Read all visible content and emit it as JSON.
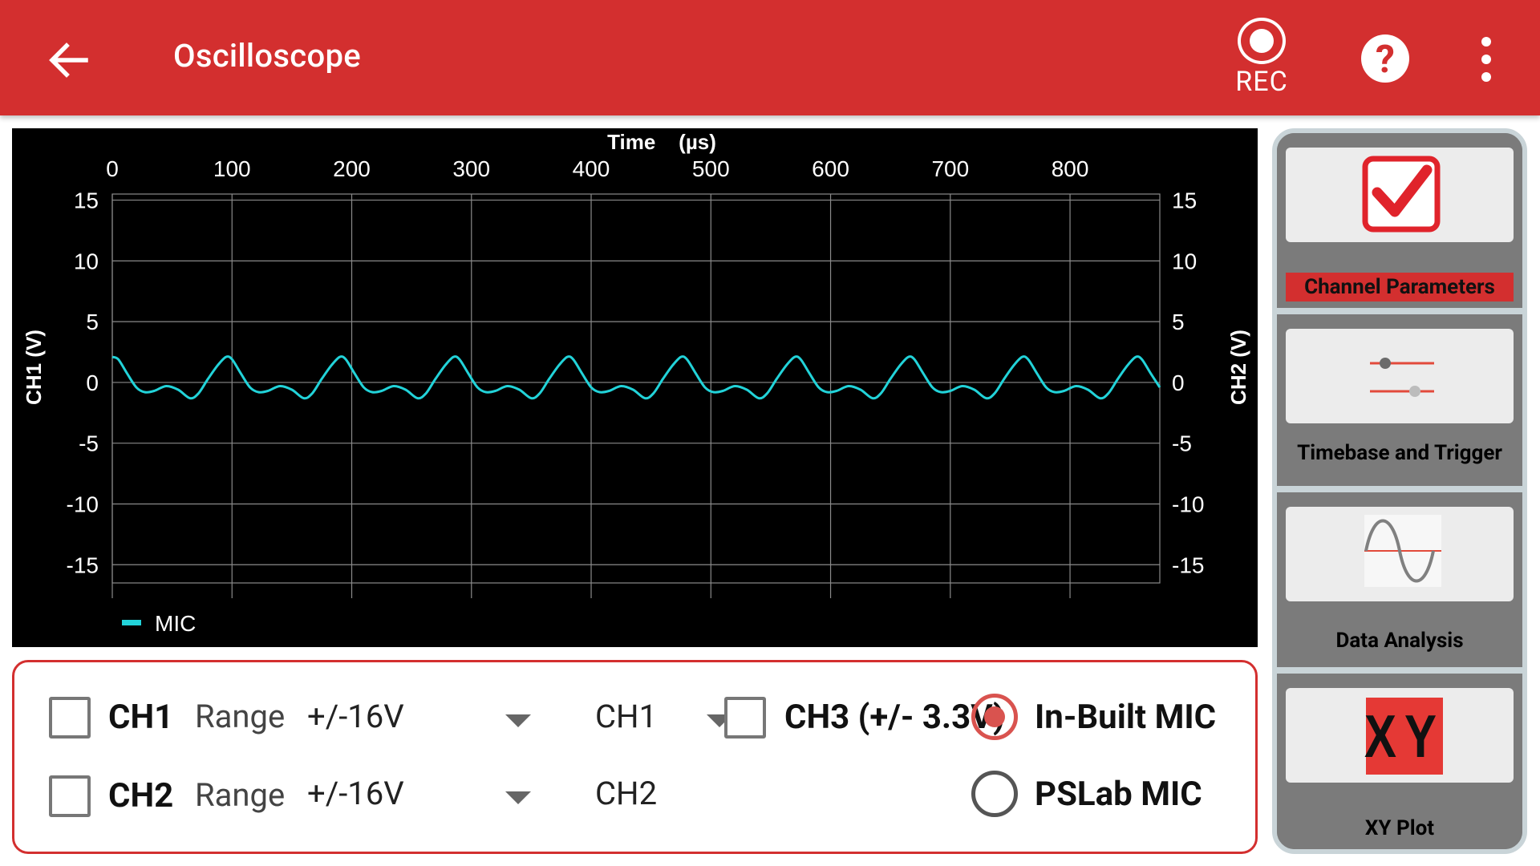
{
  "appbar": {
    "title": "Oscilloscope",
    "rec_label": "REC",
    "help_label": "?",
    "icons": {
      "back": "arrow-left-icon",
      "rec": "record-icon",
      "help": "help-circle-icon",
      "more": "more-vertical-icon"
    }
  },
  "chart_data": {
    "type": "line",
    "title": "",
    "xlabel": "Time    (µs)",
    "ylabel_left": "CH1 (V)",
    "ylabel_right": "CH2 (V)",
    "xlim": [
      0,
      875
    ],
    "ylim": [
      -16.5,
      15.5
    ],
    "x_ticks": [
      0,
      100,
      200,
      300,
      400,
      500,
      600,
      700,
      800
    ],
    "y_ticks": [
      15,
      10,
      5,
      0,
      -5,
      -10,
      -15
    ],
    "x_tick_labels": [
      "0",
      "100",
      "200",
      "300",
      "400",
      "500",
      "600",
      "700",
      "800"
    ],
    "y_tick_labels": [
      "15",
      "10",
      "5",
      "0",
      "-5",
      "-10",
      "-15"
    ],
    "grid": true,
    "legend": "bottom-left",
    "series": [
      {
        "name": "MIC",
        "color": "#22d3d9",
        "period_us": 95,
        "points": [
          [
            0,
            2.1
          ],
          [
            5,
            1.9
          ],
          [
            12,
            0.8
          ],
          [
            20,
            -0.4
          ],
          [
            27,
            -0.8
          ],
          [
            35,
            -0.7
          ],
          [
            45,
            -0.3
          ],
          [
            55,
            -0.6
          ],
          [
            65,
            -1.3
          ],
          [
            72,
            -0.9
          ],
          [
            80,
            0.3
          ],
          [
            88,
            1.4
          ],
          [
            95,
            2.1
          ],
          [
            100,
            1.9
          ],
          [
            107,
            0.8
          ],
          [
            115,
            -0.4
          ],
          [
            122,
            -0.8
          ],
          [
            130,
            -0.7
          ],
          [
            140,
            -0.3
          ],
          [
            150,
            -0.6
          ],
          [
            160,
            -1.3
          ],
          [
            167,
            -0.9
          ],
          [
            175,
            0.3
          ],
          [
            183,
            1.4
          ],
          [
            190,
            2.1
          ],
          [
            195,
            1.9
          ],
          [
            202,
            0.8
          ],
          [
            210,
            -0.4
          ],
          [
            217,
            -0.8
          ],
          [
            225,
            -0.7
          ],
          [
            235,
            -0.3
          ],
          [
            245,
            -0.6
          ],
          [
            255,
            -1.3
          ],
          [
            262,
            -0.9
          ],
          [
            270,
            0.3
          ],
          [
            278,
            1.4
          ],
          [
            285,
            2.1
          ],
          [
            290,
            1.9
          ],
          [
            297,
            0.8
          ],
          [
            305,
            -0.4
          ],
          [
            312,
            -0.8
          ],
          [
            320,
            -0.7
          ],
          [
            330,
            -0.3
          ],
          [
            340,
            -0.6
          ],
          [
            350,
            -1.3
          ],
          [
            357,
            -0.9
          ],
          [
            365,
            0.3
          ],
          [
            373,
            1.4
          ],
          [
            380,
            2.1
          ],
          [
            385,
            1.9
          ],
          [
            392,
            0.8
          ],
          [
            400,
            -0.4
          ],
          [
            407,
            -0.8
          ],
          [
            415,
            -0.7
          ],
          [
            425,
            -0.3
          ],
          [
            435,
            -0.6
          ],
          [
            445,
            -1.3
          ],
          [
            452,
            -0.9
          ],
          [
            460,
            0.3
          ],
          [
            468,
            1.4
          ],
          [
            475,
            2.1
          ],
          [
            480,
            1.9
          ],
          [
            487,
            0.8
          ],
          [
            495,
            -0.4
          ],
          [
            502,
            -0.8
          ],
          [
            510,
            -0.7
          ],
          [
            520,
            -0.3
          ],
          [
            530,
            -0.6
          ],
          [
            540,
            -1.3
          ],
          [
            547,
            -0.9
          ],
          [
            555,
            0.3
          ],
          [
            563,
            1.4
          ],
          [
            570,
            2.1
          ],
          [
            575,
            1.9
          ],
          [
            582,
            0.8
          ],
          [
            590,
            -0.4
          ],
          [
            597,
            -0.8
          ],
          [
            605,
            -0.7
          ],
          [
            615,
            -0.3
          ],
          [
            625,
            -0.6
          ],
          [
            635,
            -1.3
          ],
          [
            642,
            -0.9
          ],
          [
            650,
            0.3
          ],
          [
            658,
            1.4
          ],
          [
            665,
            2.1
          ],
          [
            670,
            1.9
          ],
          [
            677,
            0.8
          ],
          [
            685,
            -0.4
          ],
          [
            692,
            -0.8
          ],
          [
            700,
            -0.7
          ],
          [
            710,
            -0.3
          ],
          [
            720,
            -0.6
          ],
          [
            730,
            -1.3
          ],
          [
            737,
            -0.9
          ],
          [
            745,
            0.3
          ],
          [
            753,
            1.4
          ],
          [
            760,
            2.1
          ],
          [
            765,
            1.9
          ],
          [
            772,
            0.8
          ],
          [
            780,
            -0.4
          ],
          [
            787,
            -0.8
          ],
          [
            795,
            -0.7
          ],
          [
            805,
            -0.3
          ],
          [
            815,
            -0.6
          ],
          [
            825,
            -1.3
          ],
          [
            832,
            -0.9
          ],
          [
            840,
            0.3
          ],
          [
            848,
            1.4
          ],
          [
            855,
            2.1
          ],
          [
            860,
            1.9
          ],
          [
            867,
            0.8
          ],
          [
            875,
            -0.4
          ]
        ]
      }
    ]
  },
  "controls": {
    "ch1": {
      "label": "CH1",
      "range_label": "Range",
      "range_value": "+/-16V",
      "map_value": "CH1",
      "checked": false
    },
    "ch2": {
      "label": "CH2",
      "range_label": "Range",
      "range_value": "+/-16V",
      "map_value": "CH2",
      "checked": false
    },
    "ch3": {
      "label": "CH3 (+/- 3.3V)",
      "checked": false
    },
    "mic": {
      "inbuilt": {
        "label": "In-Built MIC",
        "selected": true
      },
      "pslab": {
        "label": "PSLab MIC",
        "selected": false
      }
    }
  },
  "side": {
    "items": [
      {
        "label": "Channel Parameters",
        "icon": "checkbox-checked-icon",
        "active": true
      },
      {
        "label": "Timebase and Trigger",
        "icon": "sliders-icon",
        "active": false
      },
      {
        "label": "Data Analysis",
        "icon": "sine-wave-icon",
        "active": false
      },
      {
        "label": "XY Plot",
        "icon": "xy-icon",
        "active": false,
        "icon_text": "XY"
      }
    ]
  },
  "colors": {
    "accent": "#d32f2f",
    "trace": "#22d3d9",
    "grid": "#8a8a8a",
    "plot_bg": "#000000"
  }
}
